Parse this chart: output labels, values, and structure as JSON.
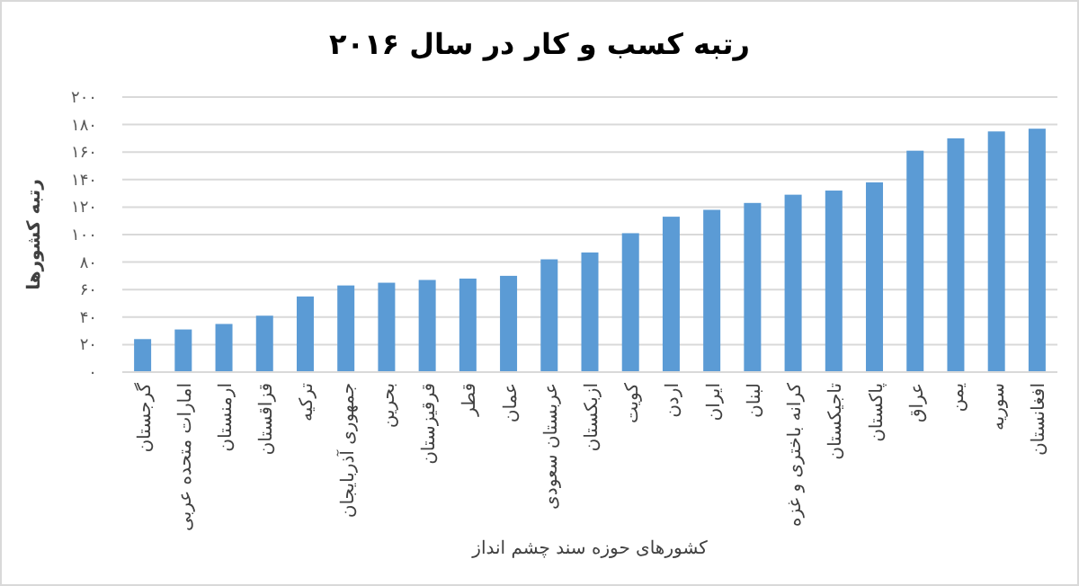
{
  "chart_data": {
    "type": "bar",
    "title": "رتبه کسب و کار در سال ۲۰۱۶",
    "xlabel": "کشورهای حوزه سند چشم انداز",
    "ylabel": "رتبه کشورها",
    "categories": [
      "گرجستان",
      "امارات متحده عربی",
      "ارمنستان",
      "قزاقستان",
      "ترکیه",
      "جمهوری آذربایجان",
      "بحرین",
      "قرقیزستان",
      "قطر",
      "عمان",
      "عربستان سعودی",
      "ازبکستان",
      "کویت",
      "اردن",
      "ایران",
      "لبنان",
      "کرانه باختری و غزه",
      "تاجیکستان",
      "پاکستان",
      "عراق",
      "یمن",
      "سوریه",
      "افغانستان"
    ],
    "values": [
      24,
      31,
      35,
      41,
      55,
      63,
      65,
      67,
      68,
      70,
      82,
      87,
      101,
      113,
      118,
      123,
      129,
      132,
      138,
      161,
      170,
      175,
      177
    ],
    "color": "#5b9bd5",
    "ylim": [
      0,
      200
    ],
    "yticks": [
      {
        "value": 0,
        "label": "۰"
      },
      {
        "value": 20,
        "label": "۲۰"
      },
      {
        "value": 40,
        "label": "۴۰"
      },
      {
        "value": 60,
        "label": "۶۰"
      },
      {
        "value": 80,
        "label": "۸۰"
      },
      {
        "value": 100,
        "label": "۱۰۰"
      },
      {
        "value": 120,
        "label": "۱۲۰"
      },
      {
        "value": 140,
        "label": "۱۴۰"
      },
      {
        "value": 160,
        "label": "۱۶۰"
      },
      {
        "value": 180,
        "label": "۱۸۰"
      },
      {
        "value": 200,
        "label": "۲۰۰"
      }
    ],
    "grid": "y"
  }
}
